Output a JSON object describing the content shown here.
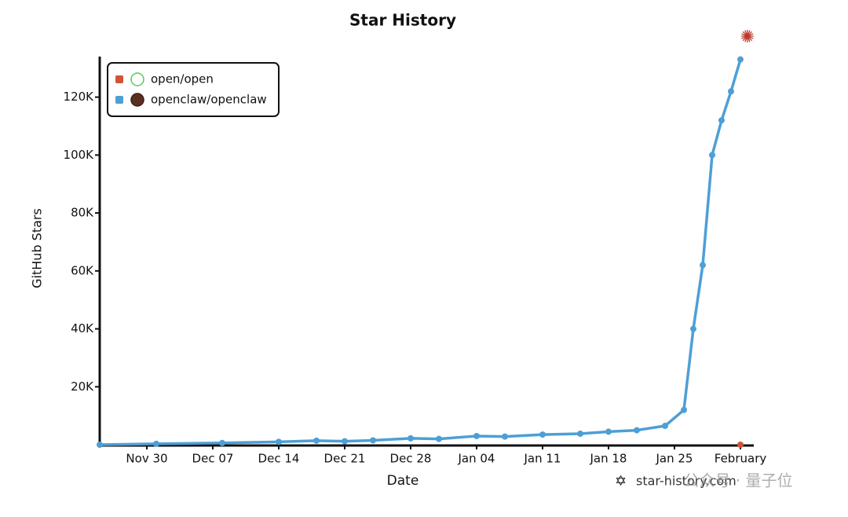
{
  "chart_data": {
    "type": "line",
    "title": "Star History",
    "x_label": "Date",
    "y_label": "GitHub Stars",
    "x": [
      "Nov 25",
      "Dec 01",
      "Dec 08",
      "Dec 14",
      "Dec 18",
      "Dec 21",
      "Dec 24",
      "Dec 28",
      "Dec 31",
      "Jan 04",
      "Jan 07",
      "Jan 11",
      "Jan 15",
      "Jan 18",
      "Jan 21",
      "Jan 24",
      "Jan 26",
      "Jan 27",
      "Jan 28",
      "Jan 29",
      "Jan 30",
      "Jan 31",
      "Feb 01"
    ],
    "series": [
      {
        "name": "open/open",
        "color": "#d2533a",
        "values": [
          null,
          null,
          null,
          null,
          null,
          null,
          null,
          null,
          null,
          null,
          null,
          null,
          null,
          null,
          null,
          null,
          null,
          null,
          null,
          null,
          null,
          null,
          0
        ]
      },
      {
        "name": "openclaw/openclaw",
        "color": "#4d9fd6",
        "values": [
          0,
          300,
          600,
          1000,
          1400,
          1200,
          1500,
          2200,
          2000,
          3000,
          2800,
          3500,
          3800,
          4500,
          5000,
          6500,
          12000,
          40000,
          62000,
          100000,
          112000,
          122000,
          133000
        ]
      }
    ],
    "xlim": [
      "Nov 25",
      "Feb 02"
    ],
    "xticks": [
      "Nov 30",
      "Dec 07",
      "Dec 14",
      "Dec 21",
      "Dec 28",
      "Jan 04",
      "Jan 11",
      "Jan 18",
      "Jan 25",
      {
        "value": "Feb 01",
        "label": "February"
      }
    ],
    "ylim": [
      0,
      134000
    ],
    "yticks": [
      {
        "value": 20000,
        "label": "20K"
      },
      {
        "value": 40000,
        "label": "40K"
      },
      {
        "value": 60000,
        "label": "60K"
      },
      {
        "value": 80000,
        "label": "80K"
      },
      {
        "value": 100000,
        "label": "100K"
      },
      {
        "value": 120000,
        "label": "120K"
      }
    ],
    "legend": "top-left",
    "watermark": "star-history.com",
    "source": "公众号 · 量子位"
  }
}
